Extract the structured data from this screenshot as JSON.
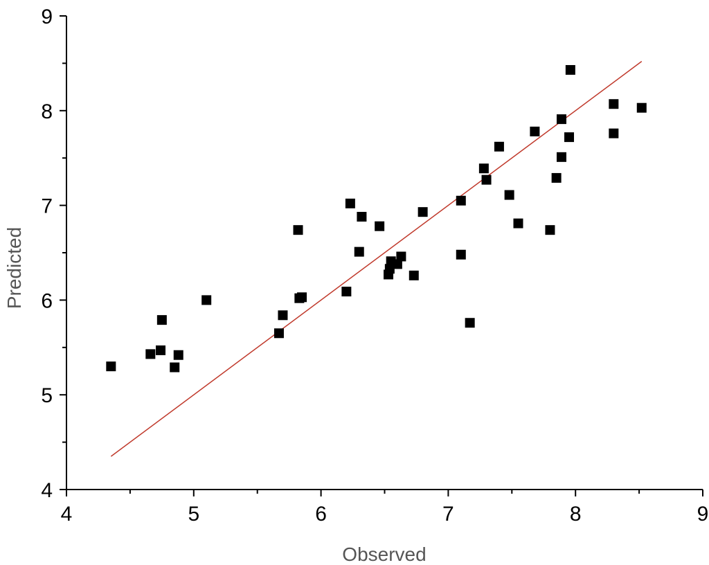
{
  "chart_data": {
    "type": "scatter",
    "title": "",
    "xlabel": "Observed",
    "ylabel": "Predicted",
    "xlim": [
      4,
      9
    ],
    "ylim": [
      4,
      9
    ],
    "x_ticks": [
      "4",
      "5",
      "6",
      "7",
      "8",
      "9"
    ],
    "y_ticks": [
      "4",
      "5",
      "6",
      "7",
      "8",
      "9"
    ],
    "grid": false,
    "legend": "none",
    "marker": "square",
    "marker_color": "#000000",
    "line_color": "#c0392b",
    "series": [
      {
        "points": [
          [
            4.35,
            5.3
          ],
          [
            4.66,
            5.43
          ],
          [
            4.74,
            5.47
          ],
          [
            4.75,
            5.79
          ],
          [
            4.85,
            5.29
          ],
          [
            4.88,
            5.42
          ],
          [
            5.1,
            6.0
          ],
          [
            5.67,
            5.65
          ],
          [
            5.7,
            5.84
          ],
          [
            5.82,
            6.74
          ],
          [
            5.83,
            6.02
          ],
          [
            5.85,
            6.03
          ],
          [
            6.2,
            6.09
          ],
          [
            6.23,
            7.02
          ],
          [
            6.3,
            6.51
          ],
          [
            6.32,
            6.88
          ],
          [
            6.46,
            6.78
          ],
          [
            6.53,
            6.27
          ],
          [
            6.54,
            6.33
          ],
          [
            6.55,
            6.41
          ],
          [
            6.6,
            6.38
          ],
          [
            6.63,
            6.46
          ],
          [
            6.73,
            6.26
          ],
          [
            6.8,
            6.93
          ],
          [
            7.1,
            7.05
          ],
          [
            7.1,
            6.48
          ],
          [
            7.17,
            5.76
          ],
          [
            7.28,
            7.39
          ],
          [
            7.3,
            7.27
          ],
          [
            7.4,
            7.62
          ],
          [
            7.48,
            7.11
          ],
          [
            7.55,
            6.81
          ],
          [
            7.68,
            7.78
          ],
          [
            7.8,
            6.74
          ],
          [
            7.85,
            7.29
          ],
          [
            7.89,
            7.51
          ],
          [
            7.89,
            7.91
          ],
          [
            7.95,
            7.72
          ],
          [
            7.96,
            8.43
          ],
          [
            8.3,
            7.76
          ],
          [
            8.3,
            8.07
          ],
          [
            8.52,
            8.03
          ]
        ]
      }
    ],
    "fit_line": {
      "x": [
        4.35,
        8.52
      ],
      "y": [
        4.35,
        8.52
      ]
    }
  }
}
